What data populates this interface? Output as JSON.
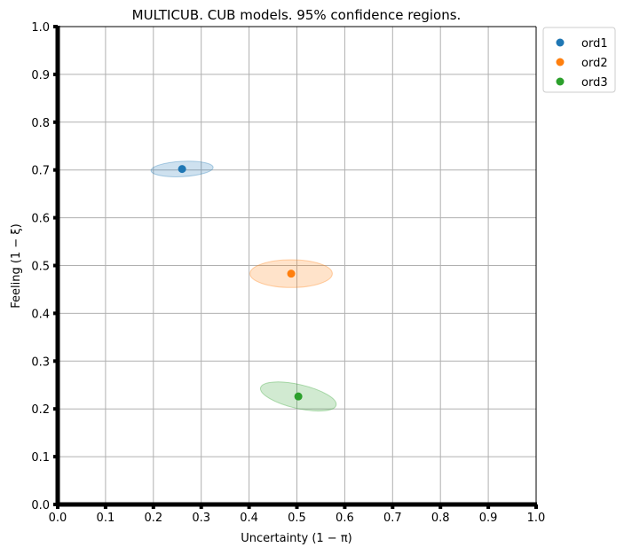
{
  "chart_data": {
    "type": "scatter",
    "title": "MULTICUB. CUB models. 95% confidence regions.",
    "xlabel": "Uncertainty (1 − π)",
    "ylabel": "Feeling (1 − ξ)",
    "xlim": [
      0.0,
      1.0
    ],
    "ylim": [
      0.0,
      1.0
    ],
    "xticks": [
      "0.0",
      "0.1",
      "0.2",
      "0.3",
      "0.4",
      "0.5",
      "0.6",
      "0.7",
      "0.8",
      "0.9",
      "1.0"
    ],
    "yticks": [
      "0.0",
      "0.1",
      "0.2",
      "0.3",
      "0.4",
      "0.5",
      "0.6",
      "0.7",
      "0.8",
      "0.9",
      "1.0"
    ],
    "grid": true,
    "legend_position": "outside-top-right",
    "series": [
      {
        "name": "ord1",
        "color": "#1f77b4",
        "point": {
          "x": 0.26,
          "y": 0.702
        },
        "ellipse": {
          "rx": 0.065,
          "ry": 0.016,
          "angle_deg": 3
        }
      },
      {
        "name": "ord2",
        "color": "#ff7f0e",
        "point": {
          "x": 0.488,
          "y": 0.483
        },
        "ellipse": {
          "rx": 0.086,
          "ry": 0.029,
          "angle_deg": 0
        }
      },
      {
        "name": "ord3",
        "color": "#2ca02c",
        "point": {
          "x": 0.503,
          "y": 0.226
        },
        "ellipse": {
          "rx": 0.081,
          "ry": 0.025,
          "angle_deg": -13
        }
      }
    ]
  }
}
